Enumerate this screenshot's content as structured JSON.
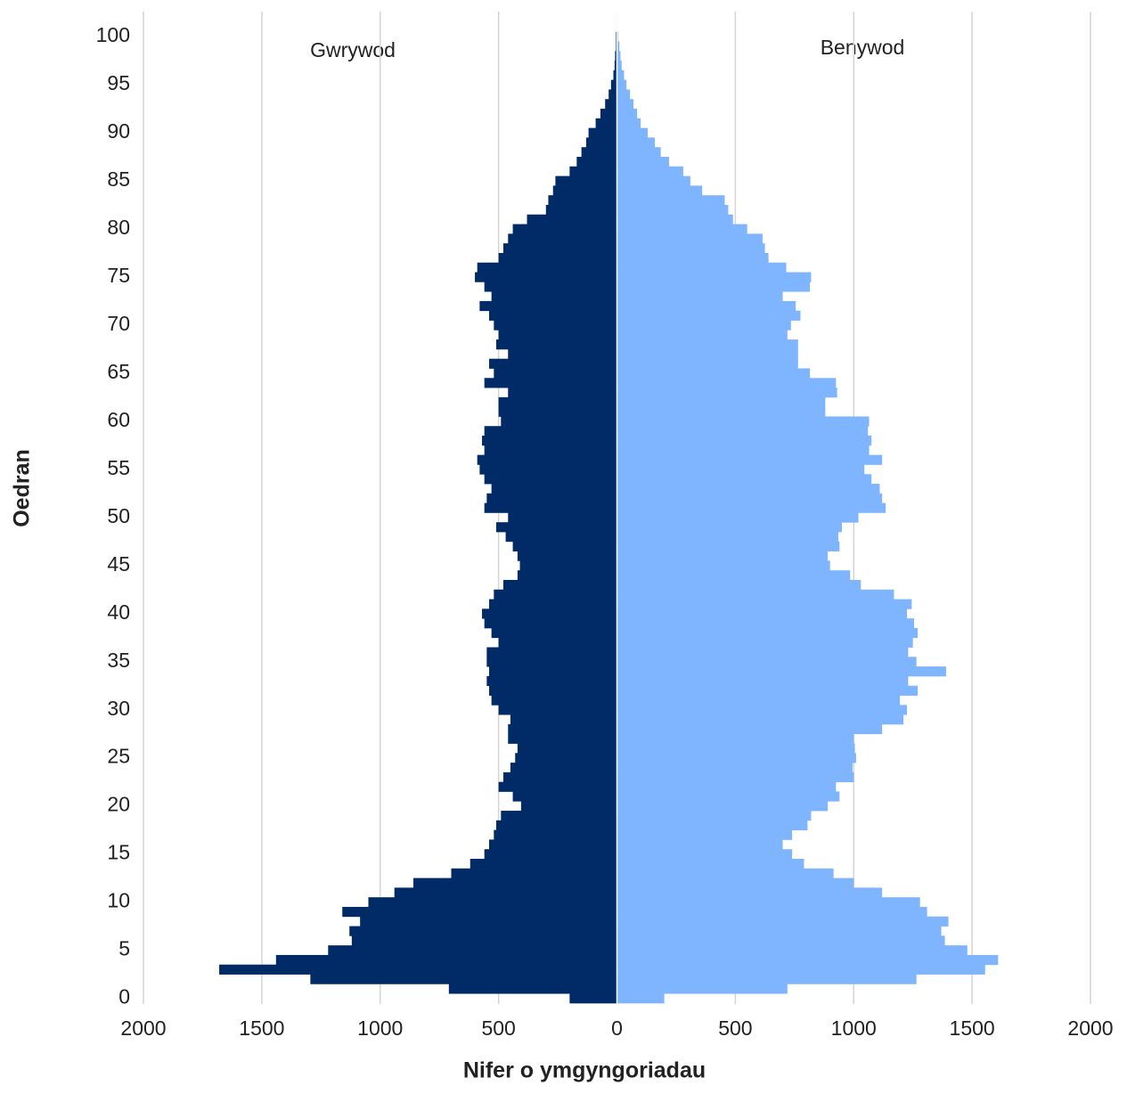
{
  "chart_data": {
    "type": "pyramid",
    "annotations": [
      "Gwrywod",
      "Benywod"
    ],
    "xlabel": "Nifer o ymgyngoriadau",
    "ylabel": "Oedran",
    "y": [
      0,
      1,
      2,
      3,
      4,
      5,
      6,
      7,
      8,
      9,
      10,
      11,
      12,
      13,
      14,
      15,
      16,
      17,
      18,
      19,
      20,
      21,
      22,
      23,
      24,
      25,
      26,
      27,
      28,
      29,
      30,
      31,
      32,
      33,
      34,
      35,
      36,
      37,
      38,
      39,
      40,
      41,
      42,
      43,
      44,
      45,
      46,
      47,
      48,
      49,
      50,
      51,
      52,
      53,
      54,
      55,
      56,
      57,
      58,
      59,
      60,
      61,
      62,
      63,
      64,
      65,
      66,
      67,
      68,
      69,
      70,
      71,
      72,
      73,
      74,
      75,
      76,
      77,
      78,
      79,
      80,
      81,
      82,
      83,
      84,
      85,
      86,
      87,
      88,
      89,
      90,
      91,
      92,
      93,
      94,
      95,
      96,
      97,
      98,
      99,
      100
    ],
    "series": [
      {
        "name": "Gwrywod",
        "color": "#002b66",
        "values": [
          -200,
          -710,
          -1295,
          -1680,
          -1440,
          -1220,
          -1120,
          -1130,
          -1085,
          -1160,
          -1050,
          -940,
          -860,
          -700,
          -620,
          -560,
          -540,
          -520,
          -510,
          -490,
          -405,
          -440,
          -500,
          -480,
          -450,
          -430,
          -420,
          -460,
          -460,
          -450,
          -500,
          -530,
          -540,
          -550,
          -540,
          -550,
          -550,
          -500,
          -530,
          -560,
          -570,
          -540,
          -520,
          -480,
          -420,
          -410,
          -420,
          -440,
          -470,
          -510,
          -460,
          -560,
          -550,
          -530,
          -560,
          -580,
          -590,
          -560,
          -570,
          -560,
          -490,
          -500,
          -500,
          -460,
          -560,
          -520,
          -540,
          -460,
          -510,
          -500,
          -520,
          -540,
          -580,
          -530,
          -560,
          -600,
          -590,
          -500,
          -480,
          -460,
          -440,
          -380,
          -300,
          -290,
          -270,
          -260,
          -200,
          -170,
          -150,
          -130,
          -120,
          -90,
          -70,
          -50,
          -35,
          -25,
          -15,
          -10,
          -8,
          -5,
          -5
        ]
      },
      {
        "name": "Benywod",
        "color": "#7fb5ff",
        "values": [
          200,
          720,
          1265,
          1555,
          1610,
          1480,
          1385,
          1370,
          1400,
          1310,
          1280,
          1120,
          1000,
          915,
          790,
          740,
          700,
          740,
          805,
          820,
          890,
          940,
          925,
          1000,
          995,
          1010,
          1005,
          1000,
          1120,
          1210,
          1225,
          1195,
          1270,
          1230,
          1390,
          1265,
          1230,
          1250,
          1270,
          1255,
          1225,
          1245,
          1170,
          1030,
          985,
          900,
          890,
          940,
          935,
          950,
          1020,
          1135,
          1120,
          1110,
          1075,
          1045,
          1120,
          1065,
          1075,
          1060,
          1065,
          880,
          880,
          930,
          925,
          815,
          765,
          765,
          765,
          720,
          735,
          775,
          755,
          700,
          815,
          820,
          715,
          640,
          625,
          615,
          550,
          490,
          470,
          455,
          360,
          310,
          280,
          220,
          185,
          160,
          130,
          100,
          85,
          70,
          55,
          40,
          30,
          20,
          15,
          10,
          5
        ]
      }
    ],
    "xlim": [
      -2000,
      2000
    ],
    "xticks": [
      {
        "value": -2000,
        "label": "2000"
      },
      {
        "value": -1500,
        "label": "1500"
      },
      {
        "value": -1000,
        "label": "1000"
      },
      {
        "value": -500,
        "label": "500"
      },
      0,
      500,
      1000,
      1500,
      2000
    ],
    "ylim": [
      -0.6,
      102.6
    ],
    "yticks": [
      0,
      5,
      10,
      15,
      20,
      25,
      30,
      35,
      40,
      45,
      50,
      55,
      60,
      65,
      70,
      75,
      80,
      85,
      90,
      95,
      100
    ],
    "grid": true
  }
}
